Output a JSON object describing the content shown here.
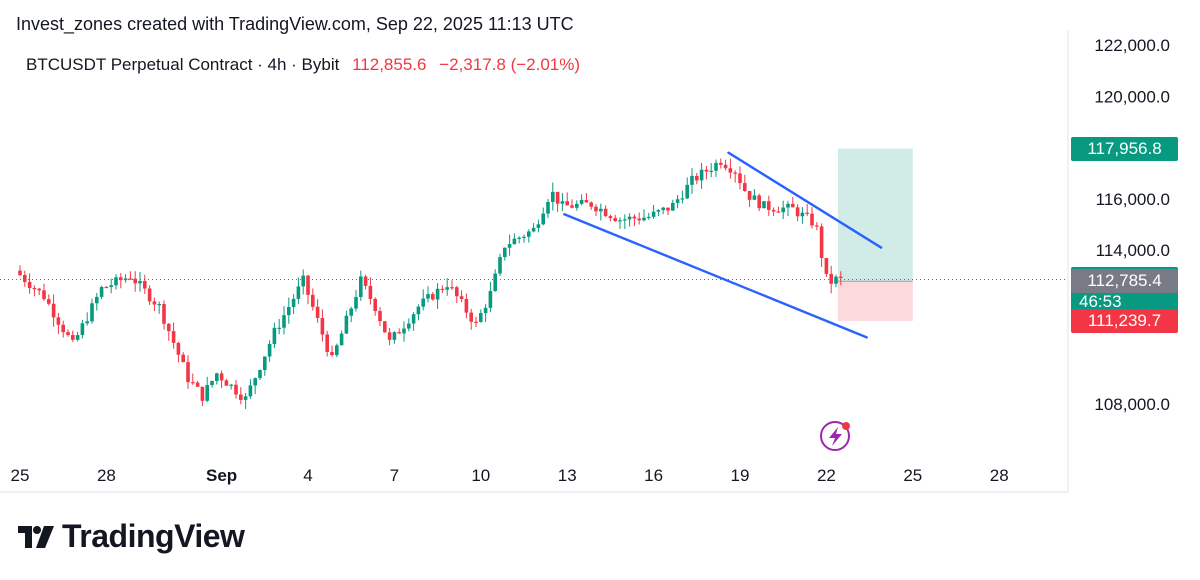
{
  "header": {
    "credit": "Invest_zones created with TradingView.com, Sep 22, 2025 11:13 UTC",
    "symbol": "BTCUSDT Perpetual Contract · 4h · Bybit",
    "last_price": "112,855.6",
    "change": "−2,317.8 (−2.01%)"
  },
  "branding": {
    "logo_icon": "tradingview-logo-icon",
    "wordmark": "TradingView"
  },
  "colors": {
    "up": "#089981",
    "down": "#f23645",
    "trendline": "#2962ff",
    "target_zone": "#d1ece6",
    "stop_zone": "#fbd9dc",
    "gray_label": "#787b86"
  },
  "chart_data": {
    "type": "candlestick",
    "interval": "4h",
    "ylim": [
      106800,
      122600
    ],
    "y_ticks": [
      "122,000.0",
      "120,000.0",
      "116,000.0",
      "114,000.0",
      "108,000.0"
    ],
    "y_tick_values": [
      122000,
      120000,
      116000,
      114000,
      108000
    ],
    "x_ticks": [
      "25",
      "28",
      "Sep",
      "4",
      "7",
      "10",
      "13",
      "16",
      "19",
      "22",
      "25",
      "28"
    ],
    "x_tick_days": [
      -6,
      -3,
      1,
      4,
      7,
      10,
      13,
      16,
      19,
      22,
      25,
      28
    ],
    "x_range_days": [
      -6.1,
      30.8
    ],
    "price_labels": [
      {
        "name": "target",
        "text": "117,956.8",
        "value": 117956.8,
        "color": "#089981"
      },
      {
        "name": "last-price",
        "text": "112,855.6",
        "countdown": "46:53",
        "value": 112855.6,
        "color": "#089981"
      },
      {
        "name": "entry",
        "text": "112,785.4",
        "value": 112785.4,
        "color": "#787b86"
      },
      {
        "name": "stop",
        "text": "111,239.7",
        "value": 111239.7,
        "color": "#f23645"
      }
    ],
    "last_price_value": 112855.6,
    "trendlines": [
      {
        "name": "upper-trendline",
        "from": [
          18.6,
          117800
        ],
        "to": [
          23.9,
          114100
        ]
      },
      {
        "name": "lower-trendline",
        "from": [
          12.9,
          115400
        ],
        "to": [
          23.4,
          110600
        ]
      }
    ],
    "position": {
      "x_from_day": 22.4,
      "x_to_day": 25.0,
      "entry": 112785.4,
      "target": 117956.8,
      "stop": 111239.7
    },
    "anchors": [
      [
        -6,
        113200
      ],
      [
        -5,
        112200
      ],
      [
        -4,
        110300
      ],
      [
        -3,
        112500
      ],
      [
        -2,
        113000
      ],
      [
        -1,
        111800
      ],
      [
        0,
        109000
      ],
      [
        0.5,
        108300
      ],
      [
        1,
        109200
      ],
      [
        2,
        108200
      ],
      [
        3,
        110800
      ],
      [
        4,
        112800
      ],
      [
        5,
        109700
      ],
      [
        6,
        112800
      ],
      [
        6.5,
        111800
      ],
      [
        7,
        110400
      ],
      [
        8,
        111800
      ],
      [
        9,
        112700
      ],
      [
        10,
        111100
      ],
      [
        10.5,
        112300
      ],
      [
        11,
        114200
      ],
      [
        12,
        114800
      ],
      [
        12.6,
        116300
      ],
      [
        13,
        115700
      ],
      [
        14,
        115800
      ],
      [
        15,
        115200
      ],
      [
        16,
        115300
      ],
      [
        16.8,
        115700
      ],
      [
        17.5,
        116700
      ],
      [
        18,
        117100
      ],
      [
        18.5,
        117500
      ],
      [
        19,
        117100
      ],
      [
        19.4,
        116200
      ],
      [
        20,
        115700
      ],
      [
        21,
        115600
      ],
      [
        21.8,
        115000
      ],
      [
        22,
        113800
      ],
      [
        22.2,
        112700
      ],
      [
        22.5,
        112855
      ]
    ]
  },
  "badge": {
    "icon": "lightning-bolt-icon"
  }
}
